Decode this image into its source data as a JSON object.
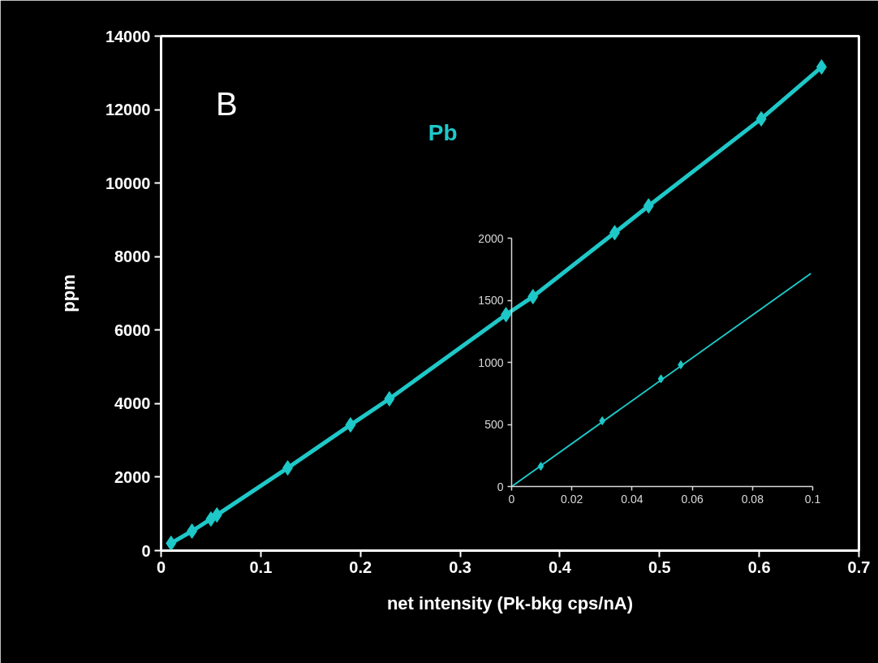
{
  "chart_data": [
    {
      "type": "line",
      "xlabel": "net intensity (Pk-bkg cps/nA)",
      "ylabel": "ppm",
      "annotations": [
        "B"
      ],
      "xlim": [
        0,
        0.7
      ],
      "ylim": [
        0,
        14000
      ],
      "xticks": [
        0,
        0.1,
        0.2,
        0.3,
        0.4,
        0.5,
        0.6,
        0.7
      ],
      "yticks": [
        0,
        2000,
        4000,
        6000,
        8000,
        10000,
        12000,
        14000
      ],
      "grid": false,
      "marker": "diamond",
      "line_style": "solid",
      "series": [
        {
          "name": "Pb",
          "color": "#1fc8c8",
          "x": [
            0.01,
            0.031,
            0.05,
            0.056,
            0.127,
            0.19,
            0.229,
            0.346,
            0.373,
            0.455,
            0.489,
            0.602,
            0.6625
          ],
          "values": [
            200,
            530,
            860,
            970,
            2250,
            3420,
            4130,
            6420,
            6910,
            8650,
            9380,
            11750,
            13160
          ]
        }
      ]
    },
    {
      "type": "scatter",
      "xlim": [
        0,
        0.1
      ],
      "ylim": [
        0,
        2000
      ],
      "xticks": [
        0,
        0.02,
        0.04,
        0.06,
        0.08,
        0.1
      ],
      "yticks": [
        0,
        500,
        1000,
        1500,
        2000
      ],
      "grid": false,
      "series": [
        {
          "color": "#1fc8c8",
          "marker": "diamond",
          "x": [
            0.0097,
            0.0301,
            0.0496,
            0.0562
          ],
          "values": [
            163,
            529,
            867,
            980
          ]
        },
        {
          "type": "line",
          "color": "#1fc8c8",
          "x": [
            0,
            0.0994
          ],
          "values": [
            0,
            1716
          ]
        }
      ]
    }
  ]
}
